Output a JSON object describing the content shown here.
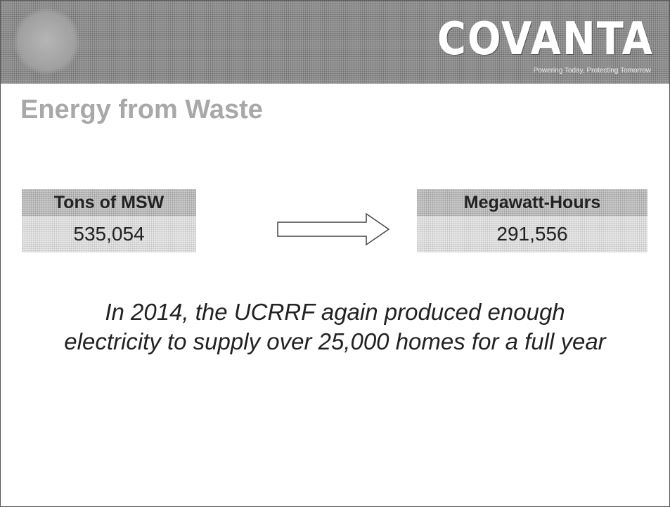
{
  "header": {
    "logo": "COVANTA",
    "tagline": "Powering Today, Protecting Tomorrow"
  },
  "title": "Energy from Waste",
  "input": {
    "label": "Tons of MSW",
    "value": "535,054"
  },
  "output": {
    "label": "Megawatt-Hours",
    "value": "291,556"
  },
  "statement": [
    "In 2014, the UCRRF again produced enough",
    "electricity to supply over 25,000 homes for a full year"
  ]
}
